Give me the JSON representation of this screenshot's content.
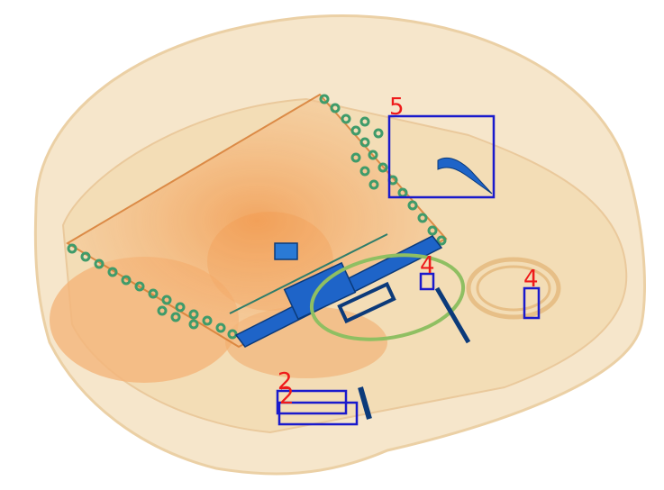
{
  "image": {
    "kind": "x-ray baggage scan",
    "colors": {
      "background": "#ffffff",
      "bag_fill": "#f3dcb4",
      "bag_edge": "#e6c08d",
      "organic": "#f0a25c",
      "organic_dark": "#e58a3e",
      "metal_blue": "#1e64c8",
      "metal_dark": "#0b3a7a",
      "ring_green": "#3f9b6a",
      "cable_green": "#8fbf62",
      "box_color": "#1a1acc",
      "label_color": "#ee1a1a"
    }
  },
  "detections": [
    {
      "label": "5"
    },
    {
      "label": "4"
    },
    {
      "label": "4"
    },
    {
      "label": "2"
    },
    {
      "label": "2"
    }
  ]
}
